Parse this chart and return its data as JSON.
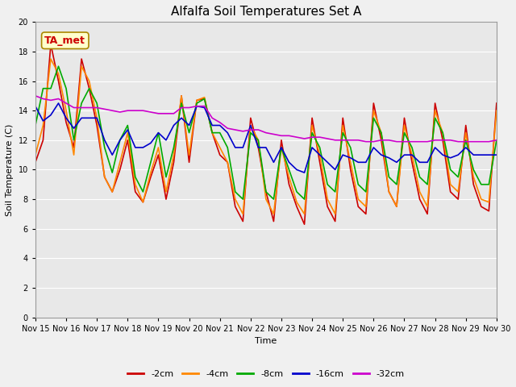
{
  "title": "Alfalfa Soil Temperatures Set A",
  "xlabel": "Time",
  "ylabel": "Soil Temperature (C)",
  "ylim": [
    0,
    20
  ],
  "yticks": [
    0,
    2,
    4,
    6,
    8,
    10,
    12,
    14,
    16,
    18,
    20
  ],
  "annotation": "TA_met",
  "series": {
    "-2cm": {
      "color": "#cc0000",
      "linewidth": 1.2,
      "values": [
        10.5,
        12.0,
        18.5,
        16.0,
        13.2,
        11.5,
        17.5,
        15.5,
        13.0,
        9.5,
        8.5,
        10.0,
        12.0,
        8.5,
        7.8,
        9.5,
        11.0,
        8.0,
        10.5,
        15.0,
        10.5,
        14.7,
        14.8,
        12.5,
        11.0,
        10.5,
        7.5,
        6.5,
        13.5,
        11.5,
        8.5,
        6.5,
        12.0,
        9.0,
        7.5,
        6.3,
        13.5,
        10.5,
        7.5,
        6.5,
        13.5,
        10.0,
        7.5,
        7.0,
        14.5,
        12.0,
        8.5,
        7.5,
        13.5,
        10.5,
        8.0,
        7.0,
        14.5,
        12.0,
        8.5,
        8.0,
        13.0,
        9.0,
        7.5,
        7.2,
        14.5
      ]
    },
    "-4cm": {
      "color": "#ff8800",
      "linewidth": 1.2,
      "values": [
        11.0,
        13.0,
        17.5,
        16.5,
        14.0,
        11.0,
        17.0,
        16.0,
        13.5,
        9.5,
        8.5,
        10.5,
        12.5,
        9.0,
        7.8,
        9.8,
        11.5,
        8.5,
        11.0,
        15.0,
        11.0,
        14.7,
        14.9,
        12.5,
        11.5,
        10.5,
        8.0,
        7.0,
        13.0,
        12.0,
        8.0,
        7.0,
        11.5,
        9.5,
        7.8,
        7.0,
        13.0,
        11.0,
        8.0,
        7.0,
        13.0,
        10.5,
        8.0,
        7.5,
        14.0,
        12.5,
        8.5,
        7.5,
        13.0,
        11.0,
        8.5,
        7.5,
        14.0,
        12.5,
        9.0,
        8.5,
        12.5,
        9.5,
        8.0,
        7.8,
        14.0
      ]
    },
    "-8cm": {
      "color": "#00aa00",
      "linewidth": 1.2,
      "values": [
        13.0,
        15.5,
        15.5,
        17.0,
        15.5,
        12.0,
        14.5,
        15.5,
        14.5,
        11.5,
        9.8,
        12.0,
        13.0,
        9.5,
        8.5,
        10.5,
        12.5,
        9.5,
        11.5,
        14.5,
        12.5,
        14.5,
        14.8,
        12.5,
        12.5,
        11.5,
        8.5,
        8.0,
        12.5,
        12.0,
        8.5,
        8.0,
        11.5,
        10.0,
        8.5,
        8.0,
        12.5,
        11.5,
        9.0,
        8.5,
        12.5,
        11.5,
        9.0,
        8.5,
        13.5,
        12.5,
        9.5,
        9.0,
        12.5,
        11.5,
        9.5,
        9.0,
        13.5,
        12.5,
        10.0,
        9.5,
        12.0,
        10.0,
        9.0,
        9.0,
        12.0
      ]
    },
    "-16cm": {
      "color": "#0000cc",
      "linewidth": 1.2,
      "values": [
        14.3,
        13.3,
        13.7,
        14.5,
        13.5,
        12.8,
        13.5,
        13.5,
        13.5,
        12.0,
        11.0,
        12.0,
        12.7,
        11.5,
        11.5,
        11.8,
        12.5,
        12.0,
        13.0,
        13.5,
        13.0,
        14.3,
        14.2,
        13.0,
        13.0,
        12.5,
        11.5,
        11.5,
        13.0,
        11.5,
        11.5,
        10.5,
        11.5,
        10.5,
        10.0,
        9.8,
        11.5,
        11.0,
        10.5,
        10.0,
        11.0,
        10.8,
        10.5,
        10.5,
        11.5,
        11.0,
        10.8,
        10.5,
        11.0,
        11.0,
        10.5,
        10.5,
        11.5,
        11.0,
        10.8,
        11.0,
        11.5,
        11.0,
        11.0,
        11.0,
        11.0
      ]
    },
    "-32cm": {
      "color": "#cc00cc",
      "linewidth": 1.2,
      "values": [
        15.0,
        14.8,
        14.7,
        14.8,
        14.5,
        14.2,
        14.2,
        14.2,
        14.2,
        14.1,
        14.0,
        13.9,
        14.0,
        14.0,
        14.0,
        13.9,
        13.8,
        13.8,
        13.8,
        14.2,
        14.2,
        14.3,
        14.3,
        13.5,
        13.2,
        12.8,
        12.7,
        12.6,
        12.7,
        12.7,
        12.5,
        12.4,
        12.3,
        12.3,
        12.2,
        12.1,
        12.2,
        12.2,
        12.1,
        12.0,
        12.0,
        12.0,
        12.0,
        11.9,
        11.9,
        12.0,
        12.0,
        11.9,
        11.9,
        11.9,
        11.9,
        11.9,
        12.0,
        12.0,
        12.0,
        11.9,
        11.9,
        11.9,
        11.9,
        11.9,
        12.0
      ]
    }
  },
  "xtick_positions": [
    0,
    4,
    8,
    12,
    16,
    20,
    24,
    28,
    32,
    36,
    40,
    44,
    48,
    52,
    56,
    60
  ],
  "xtick_labels": [
    "Nov 15",
    "Nov 16",
    "Nov 17",
    "Nov 18",
    "Nov 19",
    "Nov 20",
    "Nov 21",
    "Nov 22",
    "Nov 23",
    "Nov 24",
    "Nov 25",
    "Nov 26",
    "Nov 27",
    "Nov 28",
    "Nov 29",
    "Nov 30"
  ],
  "legend_order": [
    "-2cm",
    "-4cm",
    "-8cm",
    "-16cm",
    "-32cm"
  ],
  "fig_facecolor": "#f0f0f0",
  "plot_bg_color": "#e8e8e8",
  "grid_color": "#ffffff",
  "annotation_bg": "#ffffcc",
  "annotation_border": "#aa8800",
  "annotation_text_color": "#cc0000",
  "title_fontsize": 11,
  "axis_fontsize": 8,
  "tick_fontsize": 7,
  "legend_fontsize": 8
}
